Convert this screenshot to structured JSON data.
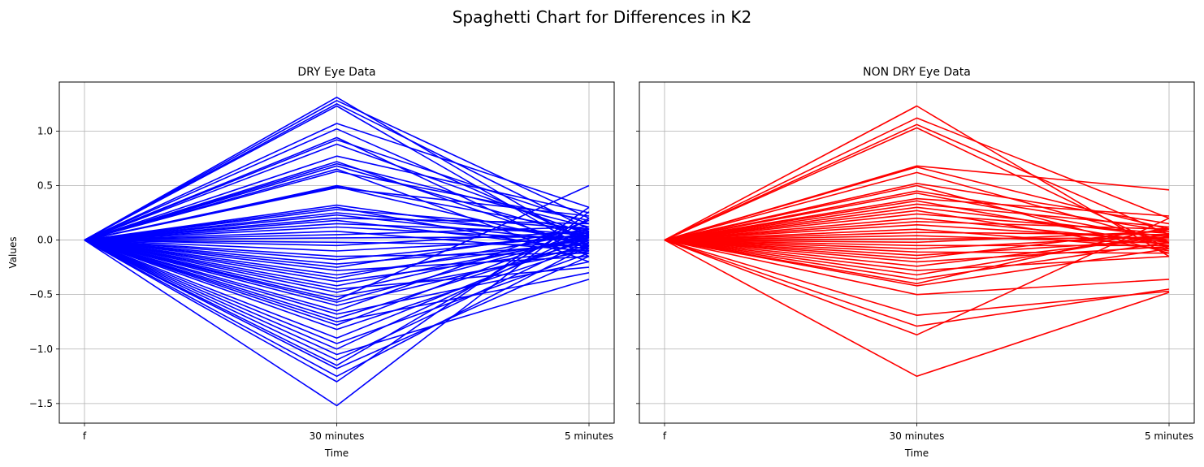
{
  "figure": {
    "title": "Spaghetti Chart for Differences in K2"
  },
  "chart_data": [
    {
      "type": "line",
      "title": "DRY Eye Data",
      "xlabel": "Time",
      "ylabel": "Values",
      "categories": [
        "f",
        "30 minutes",
        "5 minutes"
      ],
      "ylim": [
        -1.68,
        1.45
      ],
      "yticks": [
        -1.5,
        -1.0,
        -0.5,
        0.0,
        0.5,
        1.0
      ],
      "ytick_labels": [
        "−1.5",
        "−1.0",
        "−0.5",
        "0.0",
        "0.5",
        "1.0"
      ],
      "grid": true,
      "color": "#0000ff",
      "series": [
        {
          "values": [
            0,
            1.31,
            -0.05
          ]
        },
        {
          "values": [
            0,
            1.28,
            0.2
          ]
        },
        {
          "values": [
            0,
            1.25,
            0.1
          ]
        },
        {
          "values": [
            0,
            1.23,
            -0.1
          ]
        },
        {
          "values": [
            0,
            1.07,
            0.3
          ]
        },
        {
          "values": [
            0,
            1.02,
            0.0
          ]
        },
        {
          "values": [
            0,
            0.94,
            -0.15
          ]
        },
        {
          "values": [
            0,
            0.92,
            0.15
          ]
        },
        {
          "values": [
            0,
            0.88,
            0.05
          ]
        },
        {
          "values": [
            0,
            0.77,
            0.25
          ]
        },
        {
          "values": [
            0,
            0.72,
            -0.08
          ]
        },
        {
          "values": [
            0,
            0.7,
            0.12
          ]
        },
        {
          "values": [
            0,
            0.68,
            0.02
          ]
        },
        {
          "values": [
            0,
            0.65,
            -0.2
          ]
        },
        {
          "values": [
            0,
            0.63,
            0.18
          ]
        },
        {
          "values": [
            0,
            0.5,
            0.08
          ]
        },
        {
          "values": [
            0,
            0.49,
            -0.05
          ]
        },
        {
          "values": [
            0,
            0.48,
            0.22
          ]
        },
        {
          "values": [
            0,
            0.32,
            0.0
          ]
        },
        {
          "values": [
            0,
            0.3,
            -0.12
          ]
        },
        {
          "values": [
            0,
            0.28,
            0.1
          ]
        },
        {
          "values": [
            0,
            0.25,
            0.04
          ]
        },
        {
          "values": [
            0,
            0.23,
            -0.02
          ]
        },
        {
          "values": [
            0,
            0.2,
            0.15
          ]
        },
        {
          "values": [
            0,
            0.18,
            -0.08
          ]
        },
        {
          "values": [
            0,
            0.15,
            0.06
          ]
        },
        {
          "values": [
            0,
            0.12,
            0.0
          ]
        },
        {
          "values": [
            0,
            0.08,
            -0.1
          ]
        },
        {
          "values": [
            0,
            0.05,
            0.12
          ]
        },
        {
          "values": [
            0,
            0.02,
            0.03
          ]
        },
        {
          "values": [
            0,
            -0.02,
            -0.05
          ]
        },
        {
          "values": [
            0,
            -0.05,
            0.08
          ]
        },
        {
          "values": [
            0,
            -0.1,
            0.02
          ]
        },
        {
          "values": [
            0,
            -0.15,
            -0.12
          ]
        },
        {
          "values": [
            0,
            -0.18,
            0.05
          ]
        },
        {
          "values": [
            0,
            -0.22,
            -0.03
          ]
        },
        {
          "values": [
            0,
            -0.25,
            0.1
          ]
        },
        {
          "values": [
            0,
            -0.28,
            -0.15
          ]
        },
        {
          "values": [
            0,
            -0.32,
            0.0
          ]
        },
        {
          "values": [
            0,
            -0.35,
            0.07
          ]
        },
        {
          "values": [
            0,
            -0.38,
            -0.08
          ]
        },
        {
          "values": [
            0,
            -0.42,
            0.02
          ]
        },
        {
          "values": [
            0,
            -0.45,
            -0.25
          ]
        },
        {
          "values": [
            0,
            -0.48,
            0.04
          ]
        },
        {
          "values": [
            0,
            -0.52,
            -0.1
          ]
        },
        {
          "values": [
            0,
            -0.55,
            0.5
          ]
        },
        {
          "values": [
            0,
            -0.57,
            0.05
          ]
        },
        {
          "values": [
            0,
            -0.6,
            -0.05
          ]
        },
        {
          "values": [
            0,
            -0.65,
            0.18
          ]
        },
        {
          "values": [
            0,
            -0.68,
            -0.2
          ]
        },
        {
          "values": [
            0,
            -0.72,
            0.0
          ]
        },
        {
          "values": [
            0,
            -0.75,
            -0.3
          ]
        },
        {
          "values": [
            0,
            -0.78,
            0.1
          ]
        },
        {
          "values": [
            0,
            -0.82,
            -0.06
          ]
        },
        {
          "values": [
            0,
            -0.9,
            0.03
          ]
        },
        {
          "values": [
            0,
            -0.95,
            -0.12
          ]
        },
        {
          "values": [
            0,
            -1.0,
            0.08
          ]
        },
        {
          "values": [
            0,
            -1.05,
            -0.36
          ]
        },
        {
          "values": [
            0,
            -1.1,
            0.0
          ]
        },
        {
          "values": [
            0,
            -1.15,
            0.2
          ]
        },
        {
          "values": [
            0,
            -1.18,
            -0.15
          ]
        },
        {
          "values": [
            0,
            -1.25,
            -0.05
          ]
        },
        {
          "values": [
            0,
            -1.3,
            0.3
          ]
        },
        {
          "values": [
            0,
            -1.52,
            0.26
          ]
        }
      ]
    },
    {
      "type": "line",
      "title": "NON DRY Eye Data",
      "xlabel": "Time",
      "ylabel": "",
      "categories": [
        "f",
        "30 minutes",
        "5 minutes"
      ],
      "ylim": [
        -1.68,
        1.45
      ],
      "yticks": [
        -1.5,
        -1.0,
        -0.5,
        0.0,
        0.5,
        1.0
      ],
      "grid": true,
      "color": "#ff0000",
      "series": [
        {
          "values": [
            0,
            1.23,
            -0.15
          ]
        },
        {
          "values": [
            0,
            1.12,
            0.2
          ]
        },
        {
          "values": [
            0,
            1.06,
            0.05
          ]
        },
        {
          "values": [
            0,
            1.03,
            -0.08
          ]
        },
        {
          "values": [
            0,
            0.68,
            0.46
          ]
        },
        {
          "values": [
            0,
            0.67,
            0.1
          ]
        },
        {
          "values": [
            0,
            0.62,
            -0.02
          ]
        },
        {
          "values": [
            0,
            0.52,
            0.15
          ]
        },
        {
          "values": [
            0,
            0.5,
            -0.12
          ]
        },
        {
          "values": [
            0,
            0.45,
            0.08
          ]
        },
        {
          "values": [
            0,
            0.43,
            0.0
          ]
        },
        {
          "values": [
            0,
            0.38,
            0.22
          ]
        },
        {
          "values": [
            0,
            0.36,
            -0.05
          ]
        },
        {
          "values": [
            0,
            0.33,
            0.12
          ]
        },
        {
          "values": [
            0,
            0.3,
            0.03
          ]
        },
        {
          "values": [
            0,
            0.27,
            -0.1
          ]
        },
        {
          "values": [
            0,
            0.24,
            0.06
          ]
        },
        {
          "values": [
            0,
            0.2,
            -0.02
          ]
        },
        {
          "values": [
            0,
            0.17,
            0.1
          ]
        },
        {
          "values": [
            0,
            0.14,
            0.0
          ]
        },
        {
          "values": [
            0,
            0.1,
            -0.08
          ]
        },
        {
          "values": [
            0,
            0.07,
            0.05
          ]
        },
        {
          "values": [
            0,
            0.04,
            -0.03
          ]
        },
        {
          "values": [
            0,
            0.01,
            0.02
          ]
        },
        {
          "values": [
            0,
            -0.02,
            0.08
          ]
        },
        {
          "values": [
            0,
            -0.05,
            -0.05
          ]
        },
        {
          "values": [
            0,
            -0.08,
            0.04
          ]
        },
        {
          "values": [
            0,
            -0.11,
            -0.12
          ]
        },
        {
          "values": [
            0,
            -0.14,
            0.0
          ]
        },
        {
          "values": [
            0,
            -0.17,
            0.1
          ]
        },
        {
          "values": [
            0,
            -0.2,
            -0.06
          ]
        },
        {
          "values": [
            0,
            -0.24,
            0.03
          ]
        },
        {
          "values": [
            0,
            -0.28,
            -0.15
          ]
        },
        {
          "values": [
            0,
            -0.32,
            0.06
          ]
        },
        {
          "values": [
            0,
            -0.36,
            -0.02
          ]
        },
        {
          "values": [
            0,
            -0.4,
            0.12
          ]
        },
        {
          "values": [
            0,
            -0.42,
            -0.08
          ]
        },
        {
          "values": [
            0,
            -0.5,
            -0.36
          ]
        },
        {
          "values": [
            0,
            -0.69,
            -0.47
          ]
        },
        {
          "values": [
            0,
            -0.79,
            -0.45
          ]
        },
        {
          "values": [
            0,
            -0.87,
            0.2
          ]
        },
        {
          "values": [
            0,
            -1.25,
            -0.48
          ]
        }
      ]
    }
  ]
}
